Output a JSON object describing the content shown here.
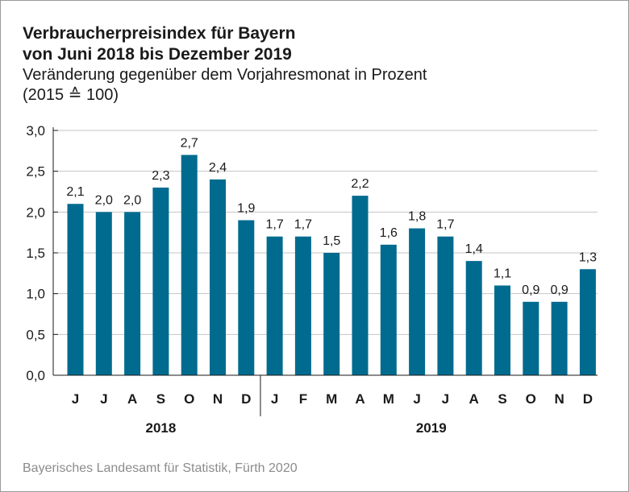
{
  "chart_data": {
    "type": "bar",
    "title_line1": "Verbraucherpreisindex für Bayern",
    "title_line2": "von Juni 2018 bis Dezember 2019",
    "subtitle_line1": "Veränderung gegenüber dem Vorjahresmonat in Prozent",
    "subtitle_line2": "(2015 ≙ 100)",
    "categories": [
      "J",
      "J",
      "A",
      "S",
      "O",
      "N",
      "D",
      "J",
      "F",
      "M",
      "A",
      "M",
      "J",
      "J",
      "A",
      "S",
      "O",
      "N",
      "D"
    ],
    "values": [
      2.1,
      2.0,
      2.0,
      2.3,
      2.7,
      2.4,
      1.9,
      1.7,
      1.7,
      1.5,
      2.2,
      1.6,
      1.8,
      1.7,
      1.4,
      1.1,
      0.9,
      0.9,
      1.3
    ],
    "value_labels": [
      "2,1",
      "2,0",
      "2,0",
      "2,3",
      "2,7",
      "2,4",
      "1,9",
      "1,7",
      "1,7",
      "1,5",
      "2,2",
      "1,6",
      "1,8",
      "1,7",
      "1,4",
      "1,1",
      "0,9",
      "0,9",
      "1,3"
    ],
    "years": [
      {
        "label": "2018",
        "start_index": 0,
        "end_index": 6
      },
      {
        "label": "2019",
        "start_index": 7,
        "end_index": 18
      }
    ],
    "y_ticks": [
      {
        "value": 0.0,
        "label": "0,0"
      },
      {
        "value": 0.5,
        "label": "0,5"
      },
      {
        "value": 1.0,
        "label": "1,0"
      },
      {
        "value": 1.5,
        "label": "1,5"
      },
      {
        "value": 2.0,
        "label": "2,0"
      },
      {
        "value": 2.5,
        "label": "2,5"
      },
      {
        "value": 3.0,
        "label": "3,0"
      }
    ],
    "ylim": [
      0,
      3.0
    ],
    "grid": true,
    "bar_color": "#006b8f",
    "xlabel": "",
    "ylabel": ""
  },
  "source": "Bayerisches Landesamt für Statistik, Fürth 2020"
}
